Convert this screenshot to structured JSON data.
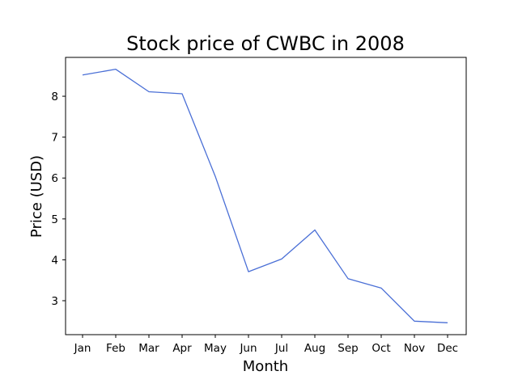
{
  "chart_data": {
    "type": "line",
    "title": "Stock price of CWBC in 2008",
    "xlabel": "Month",
    "ylabel": "Price (USD)",
    "categories": [
      "Jan",
      "Feb",
      "Mar",
      "Apr",
      "May",
      "Jun",
      "Jul",
      "Aug",
      "Sep",
      "Oct",
      "Nov",
      "Dec"
    ],
    "series": [
      {
        "values": [
          8.52,
          8.66,
          8.11,
          8.06,
          6.04,
          3.71,
          4.02,
          4.73,
          3.54,
          3.31,
          2.5,
          2.46
        ],
        "color": "#4a6fd6"
      }
    ],
    "yticks": [
      3,
      4,
      5,
      6,
      7,
      8
    ],
    "ylim": [
      2.17,
      8.95
    ],
    "grid": false,
    "legend": "none"
  }
}
